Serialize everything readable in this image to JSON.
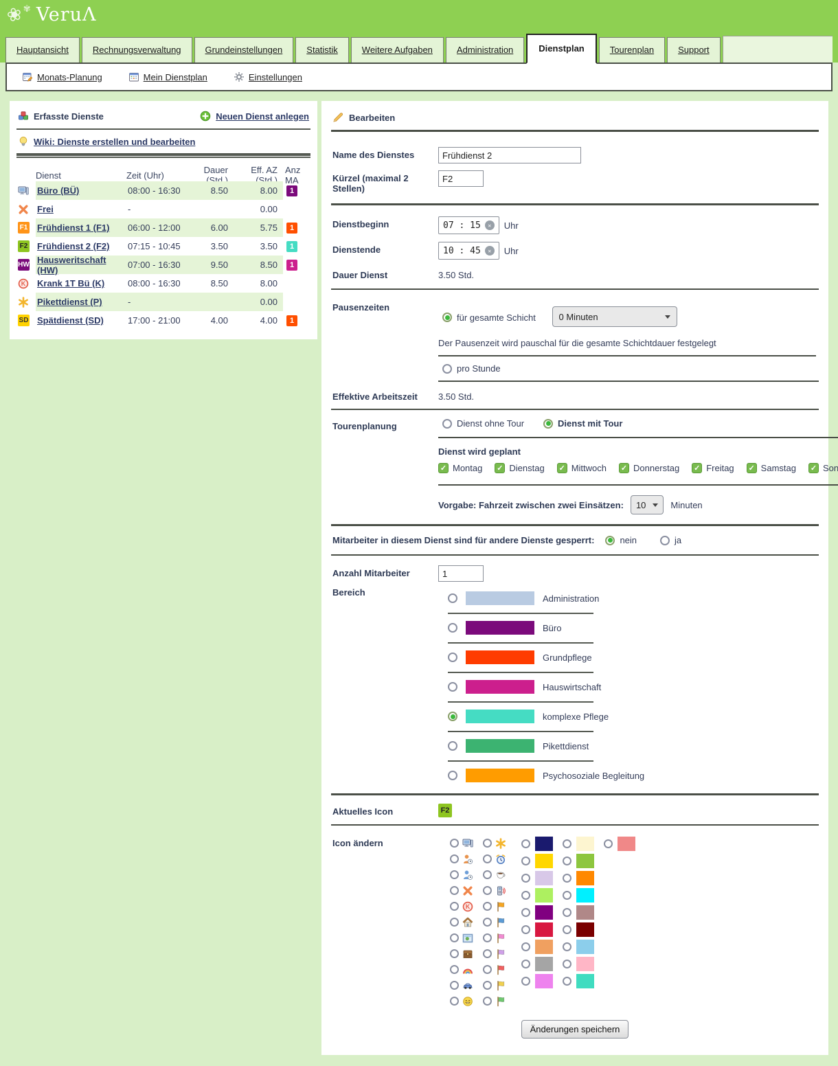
{
  "brand": {
    "logo_text": "Veru",
    "logo_accent": "Λ"
  },
  "tabs": [
    {
      "label": "Hauptansicht",
      "active": false
    },
    {
      "label": "Rechnungsverwaltung",
      "active": false
    },
    {
      "label": "Grundeinstellungen",
      "active": false
    },
    {
      "label": "Statistik",
      "active": false
    },
    {
      "label": "Weitere Aufgaben",
      "active": false
    },
    {
      "label": "Administration",
      "active": false
    },
    {
      "label": "Dienstplan",
      "active": true
    },
    {
      "label": "Tourenplan",
      "active": false
    },
    {
      "label": "Support",
      "active": false
    }
  ],
  "subnav": [
    {
      "label": "Monats-Planung",
      "icon": "calendar-pencil-icon",
      "type": "calpencil"
    },
    {
      "label": "Mein Dienstplan",
      "icon": "calendar-icon",
      "type": "calendar"
    },
    {
      "label": "Einstellungen",
      "icon": "gear-icon",
      "type": "gear"
    }
  ],
  "services_panel": {
    "title": "Erfasste Dienste",
    "new_link": "Neuen Dienst anlegen",
    "wiki_link": "Wiki: Dienste erstellen und bearbeiten",
    "columns": [
      "Dienst",
      "Zeit (Uhr)",
      "Dauer (Std.)",
      "Eff. AZ (Std.)",
      "Anz MA"
    ],
    "rows": [
      {
        "icon": {
          "type": "monitor"
        },
        "name": "Büro (BÜ)",
        "zeit": "08:00 - 16:30",
        "dauer": "8.50",
        "eff": "8.00",
        "anz": "1",
        "badge": "#7b0a7b",
        "shaded": true
      },
      {
        "icon": {
          "type": "x"
        },
        "name": "Frei",
        "zeit": "-",
        "dauer": "",
        "eff": "0.00",
        "anz": "",
        "badge": "",
        "shaded": false
      },
      {
        "icon": {
          "type": "abbr",
          "text": "F1",
          "bg": "#ff9418",
          "fg": "#ffffff"
        },
        "name": "Frühdienst 1 (F1)",
        "zeit": "06:00 - 12:00",
        "dauer": "6.00",
        "eff": "5.75",
        "anz": "1",
        "badge": "#ff4f00",
        "shaded": true
      },
      {
        "icon": {
          "type": "abbr",
          "text": "F2",
          "bg": "#8ec520",
          "fg": "#222222"
        },
        "name": "Frühdienst 2 (F2)",
        "zeit": "07:15 - 10:45",
        "dauer": "3.50",
        "eff": "3.50",
        "anz": "1",
        "badge": "#45dcc3",
        "shaded": false
      },
      {
        "icon": {
          "type": "abbr",
          "text": "HW",
          "bg": "#7b0a7b",
          "fg": "#ffffff"
        },
        "name": "Hausweritschaft (HW)",
        "zeit": "07:00 - 16:30",
        "dauer": "9.50",
        "eff": "8.50",
        "anz": "1",
        "badge": "#cc1f8d",
        "shaded": true
      },
      {
        "icon": {
          "type": "kcircle"
        },
        "name": "Krank 1T Bü (K)",
        "zeit": "08:00 - 16:30",
        "dauer": "8.50",
        "eff": "8.00",
        "anz": "",
        "badge": "",
        "shaded": false
      },
      {
        "icon": {
          "type": "asterisk"
        },
        "name": "Pikettdienst (P)",
        "zeit": "-",
        "dauer": "",
        "eff": "0.00",
        "anz": "",
        "badge": "",
        "shaded": true
      },
      {
        "icon": {
          "type": "abbr",
          "text": "SD",
          "bg": "#ffd200",
          "fg": "#333333"
        },
        "name": "Spätdienst (SD)",
        "zeit": "17:00 - 21:00",
        "dauer": "4.00",
        "eff": "4.00",
        "anz": "1",
        "badge": "#ff4f00",
        "shaded": false
      }
    ]
  },
  "editor": {
    "title": "Bearbeiten",
    "name_label": "Name des Dienstes",
    "name_value": "Frühdienst 2",
    "kuerzel_label": "Kürzel (maximal 2 Stellen)",
    "kuerzel_value": "F2",
    "begin_label": "Dienstbeginn",
    "begin_value": "07 : 15",
    "end_label": "Dienstende",
    "end_value": "10 : 45",
    "uhr_suffix": "Uhr",
    "dauer_label": "Dauer Dienst",
    "dauer_value": "3.50 Std.",
    "pausen_label": "Pausenzeiten",
    "pausen_option1": "für gesamte Schicht",
    "pausen_select_value": "0 Minuten",
    "pausen_help": "Der Pausenzeit wird pauschal für die gesamte Schichtdauer festgelegt",
    "pausen_option2": "pro Stunde",
    "eff_label": "Effektive Arbeitszeit",
    "eff_value": "3.50 Std.",
    "tour_label": "Tourenplanung",
    "tour_option1": "Dienst ohne Tour",
    "tour_option2": "Dienst mit Tour",
    "geplant_label": "Dienst wird geplant",
    "weekdays": [
      "Montag",
      "Dienstag",
      "Mittwoch",
      "Donnerstag",
      "Freitag",
      "Samstag",
      "Sonntag"
    ],
    "fahrzeit_label": "Vorgabe: Fahrzeit zwischen zwei Einsätzen:",
    "fahrzeit_value": "10",
    "fahrzeit_suffix": "Minuten",
    "gesperrt_label": "Mitarbeiter in diesem Dienst sind für andere Dienste gesperrt:",
    "gesperrt_nein": "nein",
    "gesperrt_ja": "ja",
    "anzahl_label": "Anzahl Mitarbeiter",
    "anzahl_value": "1",
    "bereich_label": "Bereich",
    "bereiche": [
      {
        "label": "Administration",
        "color": "#b9cbe2",
        "selected": false
      },
      {
        "label": "Büro",
        "color": "#7b0a7b",
        "selected": false
      },
      {
        "label": "Grundpflege",
        "color": "#ff3c00",
        "selected": false
      },
      {
        "label": "Hauswirtschaft",
        "color": "#cc1f8d",
        "selected": false
      },
      {
        "label": "komplexe Pflege",
        "color": "#45dcc3",
        "selected": true
      },
      {
        "label": "Pikettdienst",
        "color": "#3cb371",
        "selected": false
      },
      {
        "label": "Psychosoziale Begleitung",
        "color": "#ff9c00",
        "selected": false
      }
    ],
    "aktuelles_icon_label": "Aktuelles Icon",
    "aktuelles_icon": {
      "text": "F2",
      "bg": "#8ec520",
      "fg": "#222222"
    },
    "icon_aendern_label": "Icon ändern",
    "icon_options_col1": [
      {
        "name": "monitor-icon",
        "type": "monitor"
      },
      {
        "name": "person-clock-orange-icon",
        "type": "person",
        "color": "#e8944e"
      },
      {
        "name": "person-clock-blue-icon",
        "type": "person",
        "color": "#6f9fd8"
      },
      {
        "name": "x-icon",
        "type": "x"
      },
      {
        "name": "k-circle-icon",
        "type": "kcircle"
      },
      {
        "name": "house-icon",
        "type": "house"
      },
      {
        "name": "picture-icon",
        "type": "picture"
      },
      {
        "name": "chest-icon",
        "type": "chest"
      },
      {
        "name": "rainbow-icon",
        "type": "rainbow"
      },
      {
        "name": "car-icon",
        "type": "car"
      },
      {
        "name": "smiley-icon",
        "type": "smiley"
      }
    ],
    "icon_options_col2": [
      {
        "name": "asterisk-icon",
        "type": "asterisk"
      },
      {
        "name": "alarm-clock-icon",
        "type": "alarm"
      },
      {
        "name": "coffee-icon",
        "type": "coffee"
      },
      {
        "name": "phone-icon",
        "type": "phone"
      },
      {
        "name": "flag-orange-icon",
        "type": "flag",
        "color": "#f5a623"
      },
      {
        "name": "flag-blue-icon",
        "type": "flag",
        "color": "#5b9bd5"
      },
      {
        "name": "flag-pink-icon",
        "type": "flag",
        "color": "#f08bd0"
      },
      {
        "name": "flag-violet-icon",
        "type": "flag",
        "color": "#cfa0e8"
      },
      {
        "name": "flag-red-icon",
        "type": "flag",
        "color": "#f06060"
      },
      {
        "name": "flag-yellow-icon",
        "type": "flag",
        "color": "#f0d050"
      },
      {
        "name": "flag-green-icon",
        "type": "flag",
        "color": "#70c870"
      }
    ],
    "color_options_col1": [
      "#1a1a6e",
      "#ffd700",
      "#d8c8e8",
      "#adf060",
      "#800080",
      "#d81840",
      "#f0a060",
      "#a5a5a5",
      "#ee82ee"
    ],
    "color_options_col2": [
      "#fdf5d0",
      "#8dc63f",
      "#ff8800",
      "#00f0ff",
      "#b08888",
      "#7a0000",
      "#8cceeb",
      "#ffb6c6",
      "#40dcc0"
    ],
    "color_options_col3": [
      "#f08888"
    ],
    "save_button": "Änderungen speichern"
  }
}
